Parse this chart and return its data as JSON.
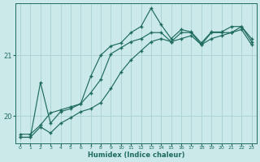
{
  "xlabel": "Humidex (Indice chaleur)",
  "bg_color": "#cce9e9",
  "grid_color": "#aad0d0",
  "line_color": "#1e6b5e",
  "xlim": [
    -0.5,
    23.5
  ],
  "ylim": [
    19.55,
    21.85
  ],
  "yticks": [
    20,
    21
  ],
  "xticks": [
    0,
    1,
    2,
    3,
    4,
    5,
    6,
    7,
    8,
    9,
    10,
    11,
    12,
    13,
    14,
    15,
    16,
    17,
    18,
    19,
    20,
    21,
    22,
    23
  ],
  "line_top_x": [
    0,
    1,
    2,
    3,
    4,
    5,
    6,
    7,
    8,
    9,
    10,
    11,
    12,
    13,
    14,
    15,
    16,
    17,
    18,
    19,
    20,
    21,
    22,
    23
  ],
  "line_top_y": [
    19.7,
    19.7,
    19.85,
    20.05,
    20.1,
    20.15,
    20.2,
    20.65,
    21.0,
    21.15,
    21.2,
    21.37,
    21.47,
    21.77,
    21.5,
    21.27,
    21.42,
    21.38,
    21.2,
    21.38,
    21.38,
    21.47,
    21.47,
    21.27
  ],
  "line_mid_x": [
    0,
    1,
    2,
    3,
    4,
    5,
    6,
    7,
    8,
    9,
    10,
    11,
    12,
    13,
    14,
    15,
    16,
    17,
    18,
    19,
    20,
    21,
    22,
    23
  ],
  "line_mid_y": [
    19.65,
    19.65,
    20.55,
    19.88,
    20.07,
    20.12,
    20.2,
    20.38,
    20.6,
    21.02,
    21.12,
    21.22,
    21.27,
    21.37,
    21.37,
    21.22,
    21.37,
    21.37,
    21.17,
    21.37,
    21.37,
    21.37,
    21.47,
    21.22
  ],
  "line_bot_x": [
    0,
    1,
    2,
    3,
    4,
    5,
    6,
    7,
    8,
    9,
    10,
    11,
    12,
    13,
    14,
    15,
    16,
    17,
    18,
    19,
    20,
    21,
    22,
    23
  ],
  "line_bot_y": [
    19.65,
    19.65,
    19.82,
    19.72,
    19.88,
    19.97,
    20.07,
    20.12,
    20.22,
    20.45,
    20.72,
    20.92,
    21.07,
    21.22,
    21.27,
    21.22,
    21.27,
    21.32,
    21.17,
    21.27,
    21.32,
    21.37,
    21.42,
    21.17
  ]
}
